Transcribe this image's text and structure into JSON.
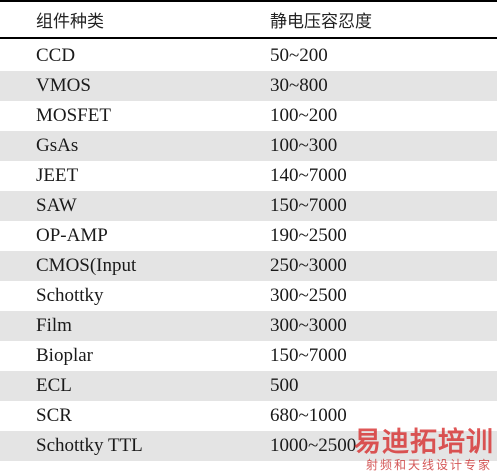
{
  "table": {
    "headers": [
      "组件种类",
      "静电压容忍度"
    ],
    "rows": [
      {
        "component": "CCD",
        "tolerance": "50~200"
      },
      {
        "component": "VMOS",
        "tolerance": "30~800"
      },
      {
        "component": "MOSFET",
        "tolerance": "100~200"
      },
      {
        "component": "GsAs",
        "tolerance": "100~300"
      },
      {
        "component": "JEET",
        "tolerance": "140~7000"
      },
      {
        "component": "SAW",
        "tolerance": "150~7000"
      },
      {
        "component": "OP-AMP",
        "tolerance": "190~2500"
      },
      {
        "component": "CMOS(Input",
        "tolerance": "250~3000"
      },
      {
        "component": "Schottky",
        "tolerance": "300~2500"
      },
      {
        "component": "Film",
        "tolerance": "300~3000"
      },
      {
        "component": "Bioplar",
        "tolerance": "150~7000"
      },
      {
        "component": "ECL",
        "tolerance": "500"
      },
      {
        "component": "SCR",
        "tolerance": "680~1000"
      },
      {
        "component": "Schottky TTL",
        "tolerance": "1000~2500"
      }
    ],
    "shade_color": "#e4e4e4"
  },
  "watermark": {
    "main": "易迪拓培训",
    "sub": "射频和天线设计专家",
    "color": "#d62828"
  }
}
